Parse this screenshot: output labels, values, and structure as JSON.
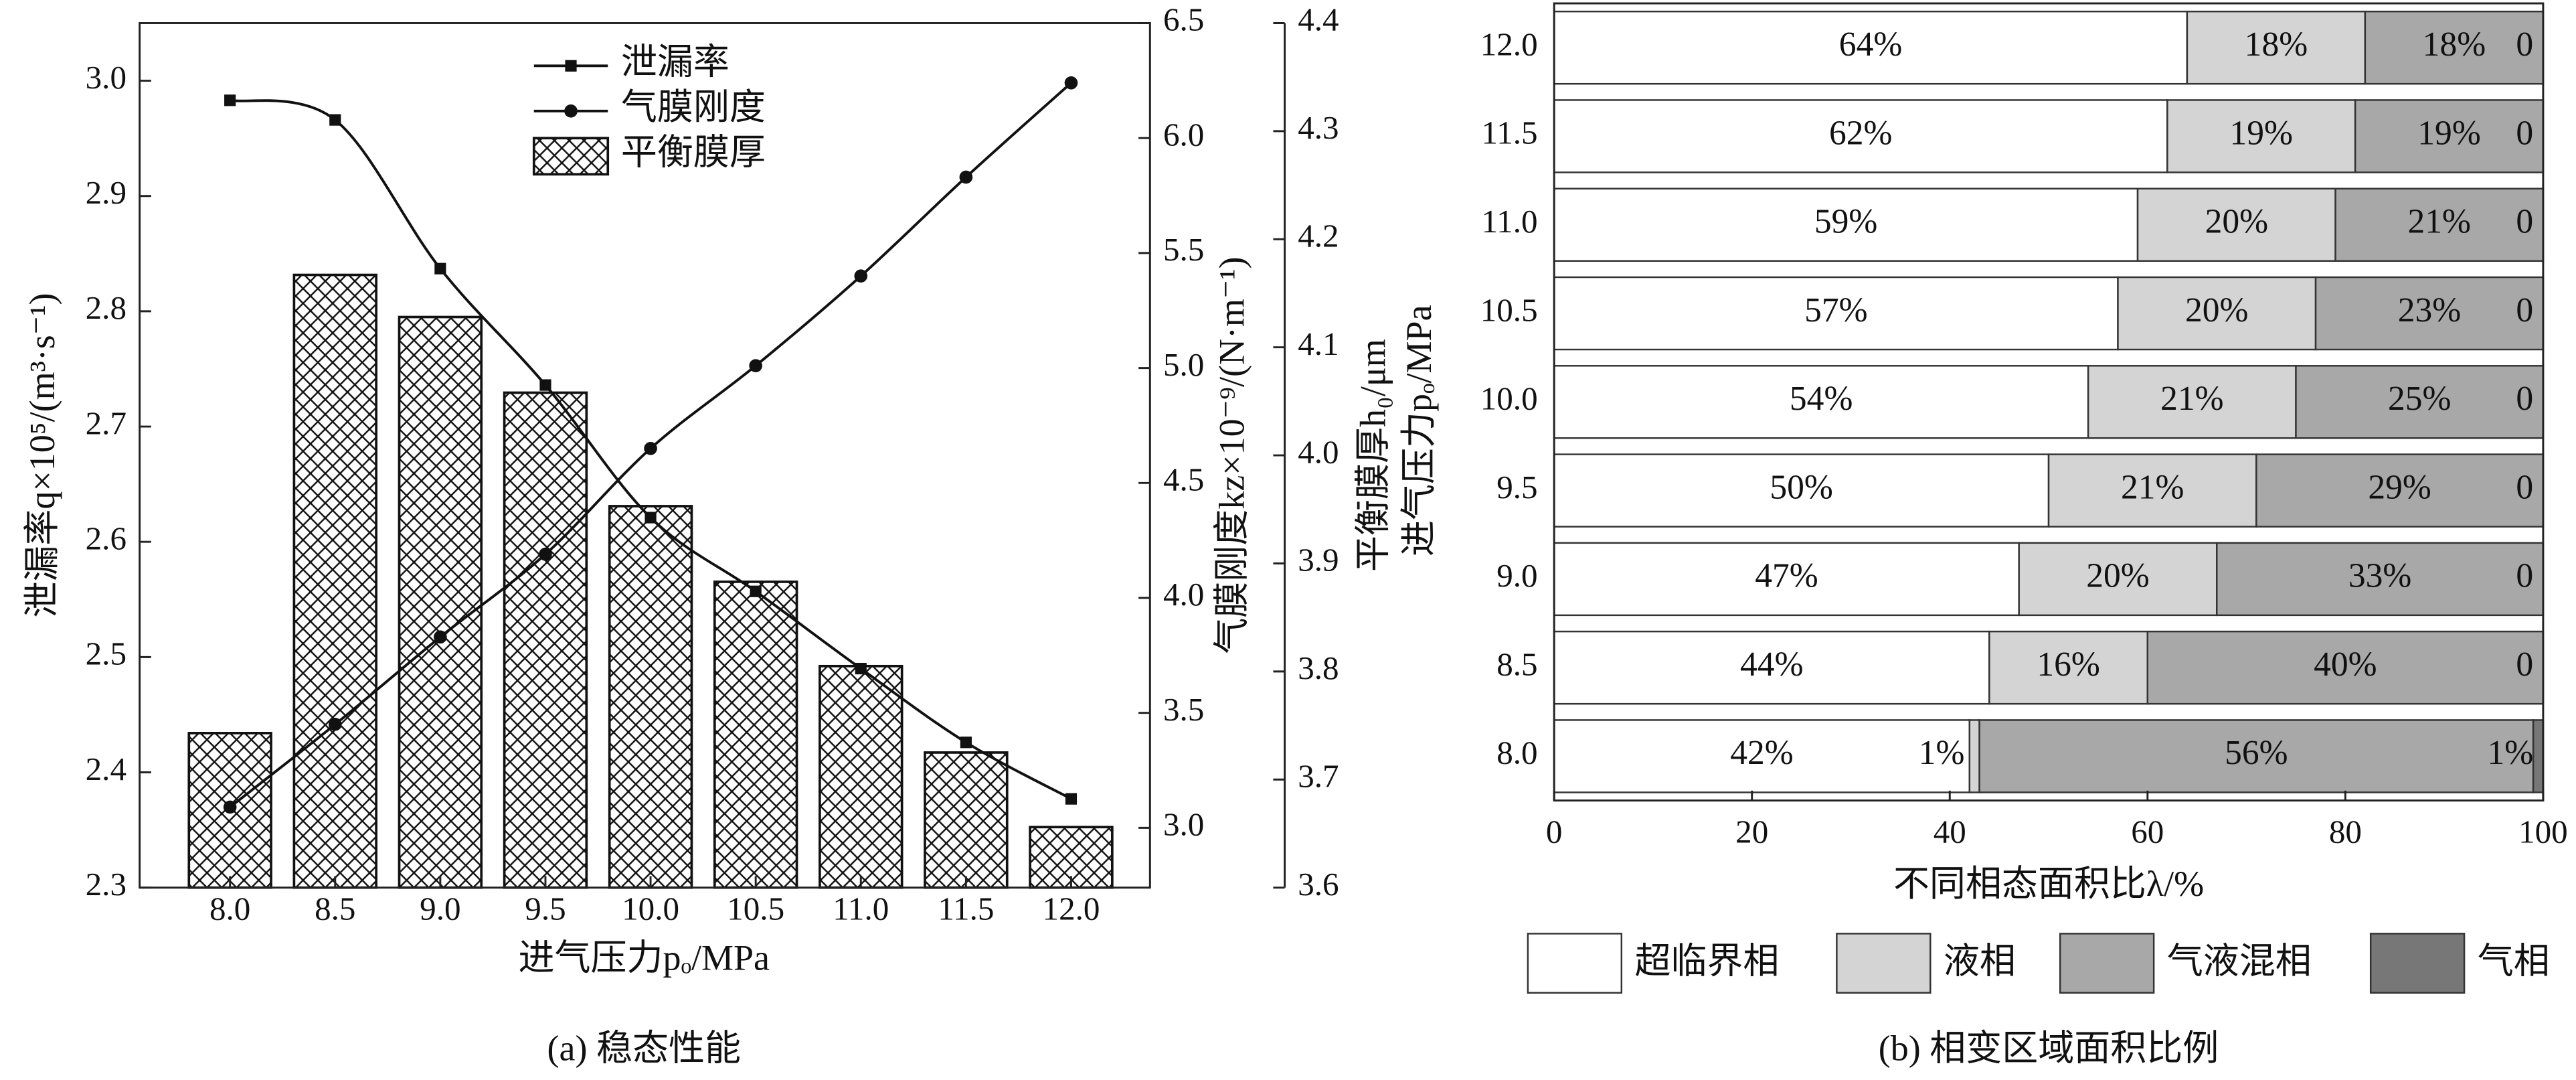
{
  "chart_data": [
    {
      "type": "combo",
      "categories": [
        "8.0",
        "8.5",
        "9.0",
        "9.5",
        "10.0",
        "10.5",
        "11.0",
        "11.5",
        "12.0"
      ],
      "series": [
        {
          "name": "泄漏率",
          "type": "line",
          "marker": "square",
          "color": "#111111",
          "values": [
            2.983,
            2.966,
            2.837,
            2.736,
            2.621,
            2.557,
            2.49,
            2.426,
            2.377
          ]
        },
        {
          "name": "气膜刚度",
          "type": "line",
          "marker": "circle",
          "color": "#111111",
          "axis": "y2",
          "values": [
            3.09,
            3.45,
            3.83,
            4.19,
            4.65,
            5.01,
            5.4,
            5.83,
            6.24
          ]
        },
        {
          "name": "平衡膜厚",
          "type": "bar",
          "pattern": "crosshatch",
          "color": "#111111",
          "axis": "y3",
          "values": [
            3.743,
            4.167,
            4.128,
            4.058,
            3.953,
            3.883,
            3.805,
            3.725,
            3.656
          ]
        }
      ],
      "ylim": [
        2.3,
        3.05
      ],
      "yticks": [
        2.3,
        2.4,
        2.5,
        2.6,
        2.7,
        2.8,
        2.9,
        {
          "value": 3,
          "label": "3.0"
        }
      ],
      "y2lim": [
        2.74,
        6.5
      ],
      "y2ticks": [
        {
          "value": 3,
          "label": "3.0"
        },
        3.5,
        {
          "value": 4,
          "label": "4.0"
        },
        4.5,
        {
          "value": 5,
          "label": "5.0"
        },
        5.5,
        {
          "value": 6,
          "label": "6.0"
        },
        6.5
      ],
      "y3lim": [
        3.6,
        4.4
      ],
      "y3ticks": [
        3.6,
        3.7,
        3.8,
        3.9,
        {
          "value": 4,
          "label": "4.0"
        },
        4.1,
        4.2,
        4.3,
        4.4
      ],
      "xlabel": "进气压力pₒ/MPa",
      "ylabel": "泄漏率q×10⁵/(m³·s⁻¹)",
      "y2label": "气膜刚度kz×10⁻⁹/(N·m⁻¹)",
      "y3label": "平衡膜厚h₀/μm",
      "caption": "(a) 稳态性能",
      "legend": "upper center"
    },
    {
      "type": "stacked_barh",
      "categories": [
        "8.0",
        "8.5",
        "9.0",
        "9.5",
        "10.0",
        "10.5",
        "11.0",
        "11.5",
        "12.0"
      ],
      "series": [
        {
          "name": "超临界相",
          "color": "#ffffff",
          "values": [
            42,
            44,
            47,
            50,
            54,
            57,
            59,
            62,
            64
          ],
          "value_labels": [
            "42%",
            "44%",
            "47%",
            "50%",
            "54%",
            "57%",
            "59%",
            "62%",
            "64%"
          ]
        },
        {
          "name": "液相",
          "color": "#d4d4d4",
          "values": [
            1,
            16,
            20,
            21,
            21,
            20,
            20,
            19,
            18
          ],
          "value_labels": [
            "1%",
            "16%",
            "20%",
            "21%",
            "21%",
            "20%",
            "20%",
            "19%",
            "18%"
          ]
        },
        {
          "name": "气液混相",
          "color": "#a8a8a8",
          "values": [
            56,
            40,
            33,
            29,
            25,
            23,
            21,
            19,
            18
          ],
          "value_labels": [
            "56%",
            "40%",
            "33%",
            "29%",
            "25%",
            "23%",
            "21%",
            "19%",
            "18%"
          ]
        },
        {
          "name": "气相",
          "color": "#777777",
          "values": [
            1,
            0,
            0,
            0,
            0,
            0,
            0,
            0,
            0
          ],
          "value_labels": [
            "1%",
            "0",
            "0",
            "0",
            "0",
            "0",
            "0",
            "0",
            "0"
          ]
        }
      ],
      "xlim": [
        0,
        100
      ],
      "xticks": [
        0,
        20,
        40,
        60,
        80,
        100
      ],
      "xlabel": "不同相态面积比λ/%",
      "ylabel": "进气压力pₒ/MPa",
      "caption": "(b) 相变区域面积比例",
      "legend": "lower center"
    }
  ]
}
